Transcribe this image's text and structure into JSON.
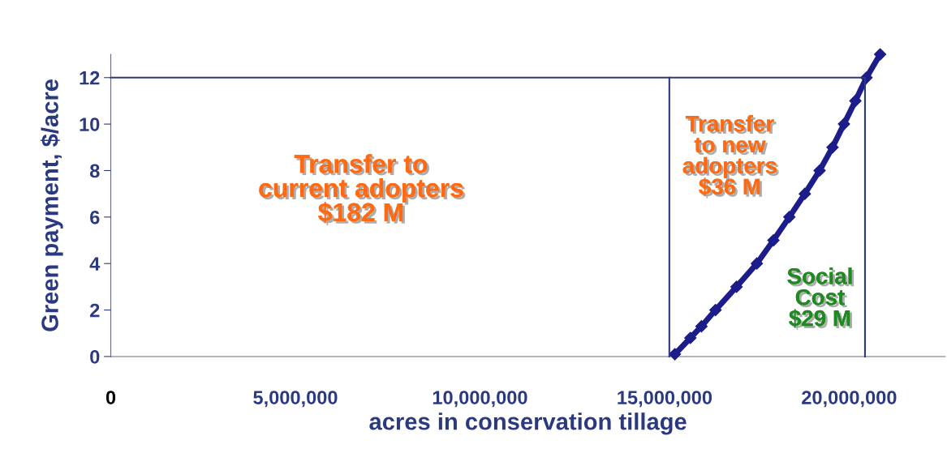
{
  "chart_data": {
    "type": "line",
    "xlabel": "acres in conservation tillage",
    "ylabel": "Green payment, $/acre",
    "series": [
      {
        "color": "#1c1c8a",
        "marker": "diamond",
        "x": [
          15280000,
          15700000,
          16000000,
          16380000,
          16950000,
          17500000,
          17950000,
          18380000,
          18800000,
          19200000,
          19550000,
          19860000,
          20170000,
          20470000,
          20840000
        ],
        "values": [
          0.1,
          0.8,
          1.3,
          2,
          3,
          4,
          5,
          6,
          7,
          8,
          9,
          10,
          11,
          12,
          13
        ]
      },
      {
        "color": "#2b3a80",
        "marker": "none",
        "x": [
          0,
          20430000,
          20430000
        ],
        "values": [
          12,
          12,
          0
        ]
      },
      {
        "color": "#2b3a80",
        "marker": "none",
        "x": [
          15130000,
          15130000
        ],
        "values": [
          0,
          12
        ]
      }
    ],
    "xlim": [
      0,
      22600000
    ],
    "ylim": [
      0,
      13
    ],
    "xticks": [
      0,
      {
        "value": 5000000,
        "label": "5,000,000"
      },
      {
        "value": 10000000,
        "label": "10,000,000"
      },
      {
        "value": 15000000,
        "label": "15,000,000"
      },
      {
        "value": 20000000,
        "label": "20,000,000"
      }
    ],
    "yticks": [
      0,
      2,
      4,
      6,
      8,
      10,
      12
    ],
    "grid": false,
    "legend": false,
    "annotations": [
      "Transfer to\ncurrent adopters\n$182 M",
      "Transfer\nto new\nadopters\n$36 M",
      "Social\nCost\n$29 M"
    ]
  }
}
